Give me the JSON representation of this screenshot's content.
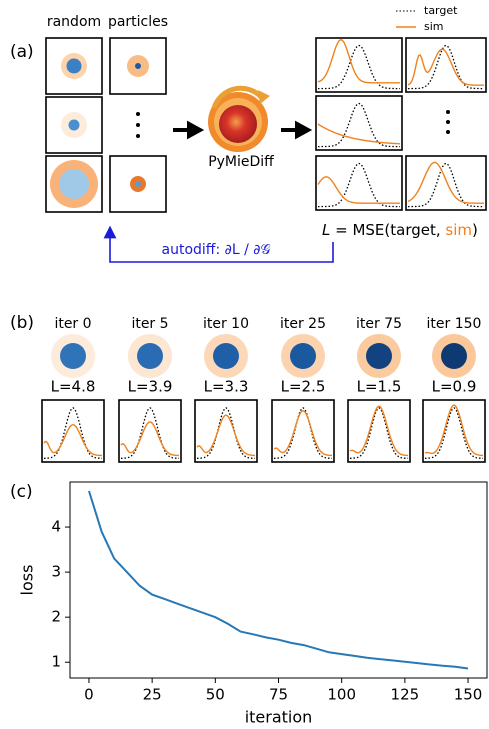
{
  "panel_a": {
    "label": "(a)",
    "col_random": "random",
    "col_particles": "particles",
    "logo_text": "PyMieDiff",
    "legend": {
      "target": "target",
      "sim": "sim"
    },
    "formula": {
      "lhs": "L",
      "mid": " = MSE(target, ",
      "sim": "sim",
      "end": ")"
    },
    "autodiff": "autodiff: ∂L / ∂𝒢"
  },
  "panel_b": {
    "label": "(b)",
    "iters": [
      "iter 0",
      "iter 5",
      "iter 10",
      "iter 25",
      "iter 75",
      "iter 150"
    ],
    "losses": [
      "L=4.8",
      "L=3.9",
      "L=3.3",
      "L=2.5",
      "L=1.5",
      "L=0.9"
    ]
  },
  "panel_c": {
    "label": "(c)"
  },
  "chart_data": {
    "type": "line",
    "xlabel": "iteration",
    "ylabel": "loss",
    "x": [
      0,
      5,
      10,
      15,
      20,
      25,
      30,
      35,
      40,
      45,
      50,
      55,
      60,
      65,
      70,
      75,
      80,
      85,
      90,
      95,
      100,
      105,
      110,
      115,
      120,
      125,
      130,
      135,
      140,
      145,
      150
    ],
    "values": [
      4.8,
      3.9,
      3.3,
      3.0,
      2.7,
      2.5,
      2.4,
      2.3,
      2.2,
      2.1,
      2.0,
      1.85,
      1.68,
      1.62,
      1.55,
      1.5,
      1.43,
      1.38,
      1.3,
      1.22,
      1.18,
      1.14,
      1.1,
      1.07,
      1.04,
      1.01,
      0.98,
      0.95,
      0.92,
      0.9,
      0.86
    ],
    "color": "#2878b5",
    "xlim": [
      -7.5,
      157.5
    ],
    "ylim": [
      0.65,
      5.0
    ],
    "xticks": [
      0,
      25,
      50,
      75,
      100,
      125,
      150
    ],
    "yticks": [
      1,
      2,
      3,
      4
    ]
  }
}
